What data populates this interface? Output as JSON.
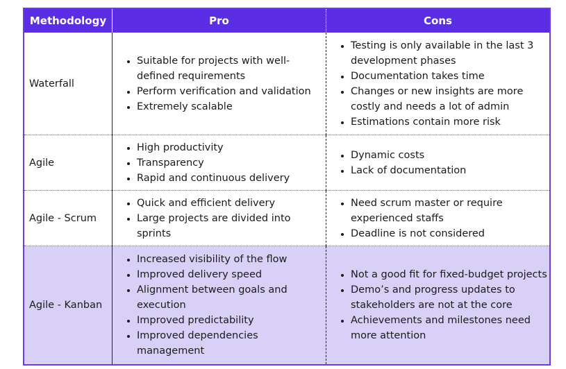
{
  "headers": {
    "methodology": "Methodology",
    "pro": "Pro",
    "cons": "Cons"
  },
  "rows": [
    {
      "name": "Waterfall",
      "pros": [
        "Suitable for projects with well-defined requirements",
        "Perform verification and validation",
        "Extremely scalable"
      ],
      "cons": [
        "Testing is only available in the last 3 development phases",
        "Documentation takes time",
        "Changes or new insights are more costly and needs a lot of admin",
        "Estimations contain more risk"
      ]
    },
    {
      "name": "Agile",
      "pros": [
        "High productivity",
        "Transparency",
        "Rapid and continuous delivery"
      ],
      "cons": [
        "Dynamic costs",
        "Lack of documentation"
      ]
    },
    {
      "name": "Agile - Scrum",
      "pros": [
        "Quick and efficient delivery",
        "Large projects are divided into sprints"
      ],
      "cons": [
        "Need scrum master or require experienced staffs",
        "Deadline is not considered"
      ]
    },
    {
      "name": "Agile - Kanban",
      "pros": [
        "Increased visibility of the flow",
        "Improved delivery speed",
        "Alignment between goals and execution",
        "Improved predictability",
        "Improved dependencies management"
      ],
      "cons": [
        "Not a good fit for fixed-budget projects",
        "Demo’s and progress updates to stakeholders are not at the core",
        "Achievements and milestones need more attention"
      ]
    }
  ],
  "colors": {
    "header_bg": "#5b2ee6",
    "highlight_row_bg": "#d8d0f6",
    "border": "#6a3de0"
  }
}
